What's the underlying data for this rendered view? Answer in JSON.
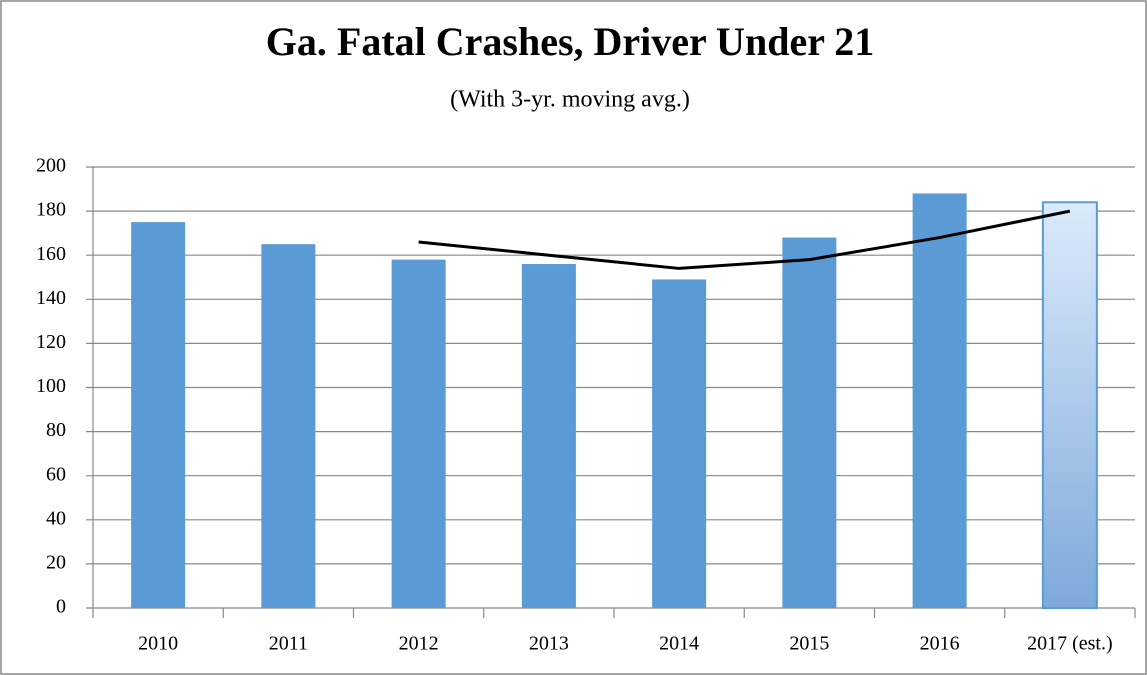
{
  "chart_data": {
    "type": "bar",
    "title": "Ga. Fatal Crashes, Driver Under 21",
    "subtitle": "(With 3-yr. moving avg.)",
    "categories": [
      "2010",
      "2011",
      "2012",
      "2013",
      "2014",
      "2015",
      "2016",
      "2017 (est.)"
    ],
    "series": [
      {
        "type": "bar",
        "values": [
          175,
          165,
          158,
          156,
          149,
          168,
          188,
          184
        ],
        "colors": [
          "#5b9bd5",
          "#5b9bd5",
          "#5b9bd5",
          "#5b9bd5",
          "#5b9bd5",
          "#5b9bd5",
          "#5b9bd5",
          "#d6e8fb"
        ]
      },
      {
        "type": "line",
        "color": "#000000",
        "values": [
          null,
          null,
          166,
          160,
          154,
          158,
          168,
          180
        ]
      }
    ],
    "ylim": [
      0,
      200
    ],
    "yticks": [
      0,
      20,
      40,
      60,
      80,
      100,
      120,
      140,
      160,
      180,
      200
    ],
    "grid": true
  }
}
